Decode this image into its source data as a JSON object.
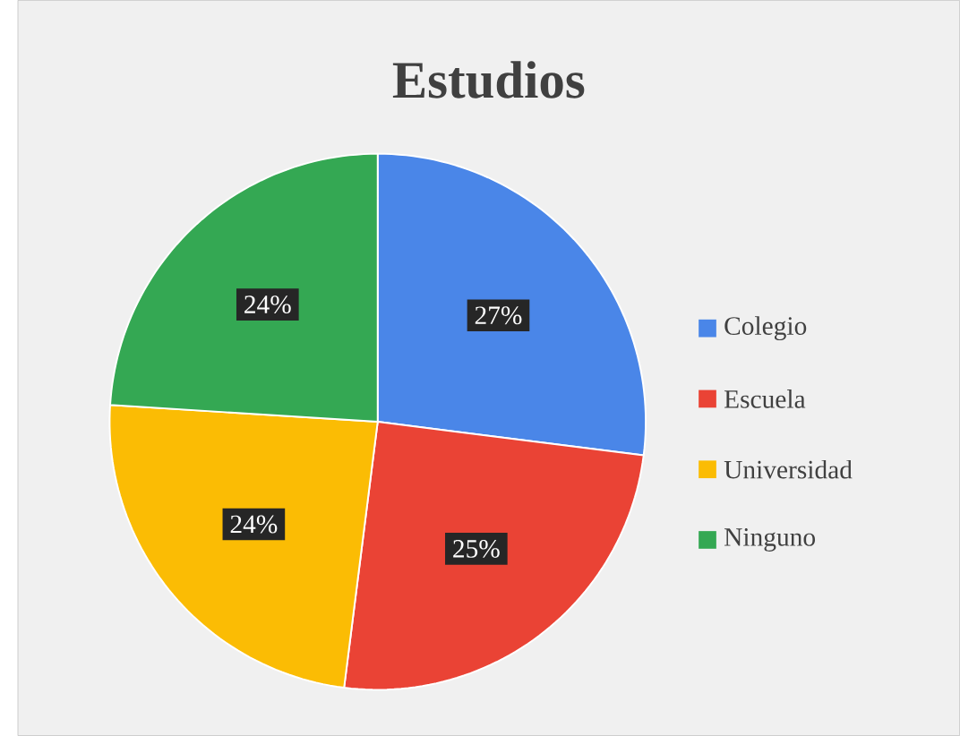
{
  "chart_data": {
    "type": "pie",
    "title": "Estudios",
    "categories": [
      "Colegio",
      "Escuela",
      "Universidad",
      "Ninguno"
    ],
    "values": [
      27,
      25,
      24,
      24
    ],
    "value_labels": [
      "27%",
      "25%",
      "24%",
      "24%"
    ],
    "colors": [
      "#4a86e8",
      "#ea4335",
      "#fbbc04",
      "#34a853"
    ],
    "legend": "right"
  }
}
